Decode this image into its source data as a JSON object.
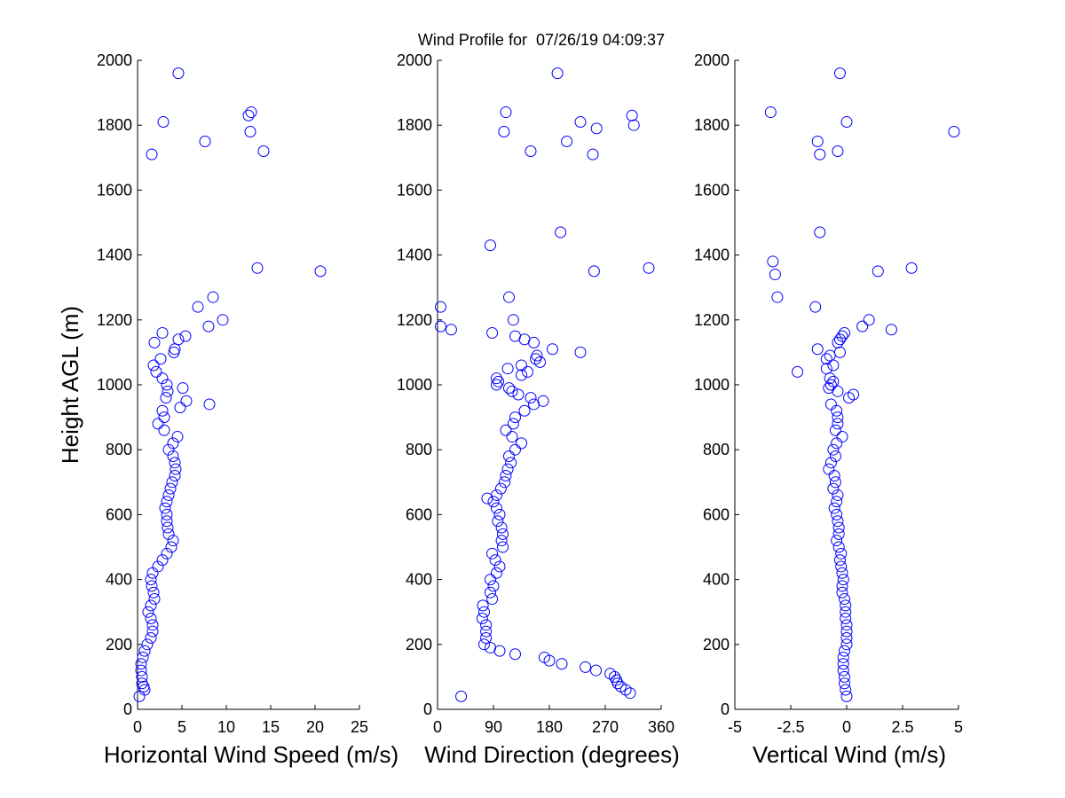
{
  "chart_data": [
    {
      "type": "scatter",
      "title": "Wind Profile for  07/26/19 04:09:37",
      "xlabel": "Horizontal Wind Speed (m/s)",
      "ylabel": "Height AGL (m)",
      "xlim": [
        0,
        25
      ],
      "xticks": [
        0,
        5,
        10,
        15,
        20,
        25
      ],
      "ylim": [
        0,
        2000
      ],
      "yticks": [
        0,
        200,
        400,
        600,
        800,
        1000,
        1200,
        1400,
        1600,
        1800,
        2000
      ],
      "color": "#0000ff",
      "x": [
        0.2,
        0.8,
        0.7,
        0.5,
        0.5,
        0.4,
        0.4,
        0.6,
        0.8,
        1.1,
        1.5,
        1.7,
        1.7,
        1.5,
        1.2,
        1.5,
        1.9,
        1.8,
        1.6,
        1.5,
        1.7,
        2.3,
        2.8,
        3.3,
        3.8,
        4.0,
        3.5,
        3.4,
        3.3,
        3.3,
        3.1,
        3.3,
        3.5,
        3.7,
        3.9,
        4.2,
        4.3,
        4.2,
        4.0,
        3.5,
        4.0,
        4.5,
        3.0,
        2.3,
        3.0,
        2.8,
        4.8,
        8.1,
        5.5,
        3.2,
        3.4,
        5.1,
        3.3,
        2.8,
        2.1,
        1.8,
        2.6,
        4.1,
        4.2,
        1.9,
        4.6,
        5.4,
        2.8,
        8.0,
        9.6,
        6.8,
        8.5,
        20.6,
        13.5,
        1.6,
        14.2,
        7.6,
        12.7,
        2.9,
        12.5,
        12.8,
        4.6
      ],
      "values": [
        40,
        60,
        70,
        80,
        100,
        120,
        140,
        160,
        180,
        200,
        220,
        240,
        260,
        280,
        300,
        320,
        340,
        360,
        380,
        400,
        420,
        440,
        460,
        480,
        500,
        520,
        540,
        560,
        580,
        600,
        620,
        640,
        660,
        680,
        700,
        720,
        740,
        760,
        780,
        800,
        820,
        840,
        860,
        880,
        900,
        920,
        930,
        940,
        950,
        960,
        980,
        990,
        1000,
        1020,
        1040,
        1060,
        1080,
        1100,
        1110,
        1130,
        1140,
        1150,
        1160,
        1180,
        1200,
        1240,
        1270,
        1350,
        1360,
        1710,
        1720,
        1750,
        1780,
        1810,
        1830,
        1840,
        1960
      ]
    },
    {
      "type": "scatter",
      "xlabel": "Wind Direction (degrees)",
      "xlim": [
        0,
        360
      ],
      "xticks": [
        0,
        90,
        180,
        270,
        360
      ],
      "ylim": [
        0,
        2000
      ],
      "yticks": [
        0,
        200,
        400,
        600,
        800,
        1000,
        1200,
        1400,
        1600,
        1800,
        2000
      ],
      "color": "#0000ff",
      "x": [
        38,
        310,
        303,
        295,
        290,
        288,
        285,
        278,
        255,
        238,
        200,
        180,
        172,
        125,
        100,
        85,
        75,
        78,
        78,
        78,
        72,
        75,
        73,
        88,
        85,
        90,
        85,
        95,
        100,
        93,
        88,
        105,
        103,
        105,
        103,
        97,
        100,
        95,
        90,
        80,
        95,
        102,
        108,
        110,
        113,
        118,
        115,
        125,
        135,
        120,
        110,
        122,
        125,
        140,
        155,
        170,
        150,
        130,
        120,
        115,
        95,
        98,
        95,
        135,
        145,
        113,
        135,
        165,
        158,
        160,
        230,
        185,
        155,
        140,
        125,
        88,
        22,
        5,
        122,
        5,
        115,
        252,
        340,
        85,
        198,
        250,
        150,
        208,
        107,
        256,
        316,
        230,
        313,
        110,
        193
      ],
      "values": [
        40,
        50,
        60,
        70,
        80,
        90,
        100,
        110,
        120,
        130,
        140,
        150,
        160,
        170,
        180,
        190,
        200,
        220,
        240,
        260,
        280,
        300,
        320,
        340,
        360,
        380,
        400,
        420,
        440,
        460,
        480,
        500,
        520,
        540,
        560,
        580,
        600,
        620,
        640,
        650,
        660,
        680,
        700,
        720,
        740,
        760,
        780,
        800,
        820,
        840,
        860,
        880,
        900,
        920,
        940,
        950,
        960,
        970,
        980,
        990,
        1000,
        1010,
        1020,
        1030,
        1040,
        1050,
        1060,
        1070,
        1080,
        1090,
        1100,
        1110,
        1130,
        1140,
        1150,
        1160,
        1170,
        1180,
        1200,
        1240,
        1270,
        1350,
        1360,
        1430,
        1470,
        1710,
        1720,
        1750,
        1780,
        1790,
        1800,
        1810,
        1830,
        1840,
        1960
      ]
    },
    {
      "type": "scatter",
      "xlabel": "Vertical Wind (m/s)",
      "xlim": [
        -5,
        5
      ],
      "xticks": [
        -5,
        -2.5,
        0,
        2.5,
        5
      ],
      "ylim": [
        0,
        2000
      ],
      "yticks": [
        0,
        200,
        400,
        600,
        800,
        1000,
        1200,
        1400,
        1600,
        1800,
        2000
      ],
      "color": "#0000ff",
      "x": [
        0,
        -0.05,
        -0.1,
        -0.1,
        -0.15,
        -0.15,
        -0.15,
        -0.1,
        0,
        0,
        0,
        0,
        -0.05,
        -0.05,
        -0.05,
        -0.1,
        -0.2,
        -0.2,
        -0.15,
        -0.2,
        -0.25,
        -0.3,
        -0.25,
        -0.35,
        -0.45,
        -0.35,
        -0.35,
        -0.4,
        -0.45,
        -0.55,
        -0.45,
        -0.4,
        -0.6,
        -0.5,
        -0.55,
        -0.8,
        -0.7,
        -0.5,
        -0.6,
        -0.45,
        -0.2,
        -0.5,
        -0.4,
        -0.4,
        -0.45,
        -0.7,
        0.1,
        0.3,
        -0.4,
        -0.8,
        -0.7,
        -0.6,
        -0.75,
        -2.2,
        -0.9,
        -0.6,
        -0.9,
        -0.75,
        -0.3,
        -1.3,
        -0.4,
        -0.3,
        -0.2,
        -0.1,
        2.0,
        0.7,
        1.0,
        -1.4,
        -3.1,
        -3.2,
        1.4,
        2.9,
        -3.3,
        -1.2,
        -1.2,
        -0.4,
        -1.3,
        4.8,
        0,
        -3.4,
        -0.3
      ],
      "values": [
        40,
        60,
        80,
        100,
        120,
        140,
        160,
        180,
        200,
        220,
        240,
        260,
        280,
        300,
        320,
        340,
        360,
        380,
        400,
        420,
        440,
        460,
        480,
        500,
        520,
        540,
        560,
        580,
        600,
        620,
        640,
        660,
        680,
        700,
        720,
        740,
        760,
        780,
        800,
        820,
        840,
        860,
        880,
        900,
        920,
        940,
        960,
        970,
        980,
        990,
        1000,
        1010,
        1020,
        1040,
        1050,
        1060,
        1080,
        1090,
        1100,
        1110,
        1130,
        1140,
        1150,
        1160,
        1170,
        1180,
        1200,
        1240,
        1270,
        1340,
        1350,
        1360,
        1380,
        1470,
        1710,
        1720,
        1750,
        1780,
        1810,
        1840,
        1960
      ]
    }
  ]
}
